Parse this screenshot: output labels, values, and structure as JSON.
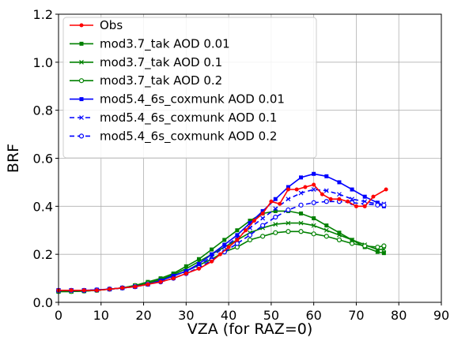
{
  "chart_data": {
    "type": "line",
    "xlabel": "VZA (for RAZ=0)",
    "ylabel": "BRF",
    "xlim": [
      0,
      90
    ],
    "ylim": [
      0,
      1.2
    ],
    "xticks": [
      "0",
      "10",
      "20",
      "30",
      "40",
      "50",
      "60",
      "70",
      "80",
      "90"
    ],
    "yticks": [
      "0.0",
      "0.2",
      "0.4",
      "0.6",
      "0.8",
      "1.0",
      "1.2"
    ],
    "grid": true,
    "legend_position": "top-left",
    "series": [
      {
        "name": "Obs",
        "color": "#ff0000",
        "marker": "dot",
        "dash": "solid",
        "x": [
          0,
          3,
          6,
          9,
          12,
          15,
          18,
          21,
          24,
          27,
          30,
          33,
          36,
          38,
          40,
          42,
          44,
          46,
          48,
          50,
          52,
          54,
          56,
          58,
          60,
          62,
          64,
          66,
          68,
          70,
          72,
          74,
          77
        ],
        "y": [
          0.05,
          0.05,
          0.05,
          0.05,
          0.055,
          0.06,
          0.065,
          0.075,
          0.085,
          0.1,
          0.12,
          0.14,
          0.17,
          0.2,
          0.23,
          0.26,
          0.3,
          0.34,
          0.37,
          0.42,
          0.41,
          0.47,
          0.47,
          0.48,
          0.49,
          0.45,
          0.43,
          0.43,
          0.42,
          0.4,
          0.4,
          0.44,
          0.47
        ]
      },
      {
        "name": "mod3.7_tak AOD 0.01",
        "color": "#008000",
        "marker": "square",
        "dash": "solid",
        "x": [
          0,
          3,
          6,
          9,
          12,
          15,
          18,
          21,
          24,
          27,
          30,
          33,
          36,
          39,
          42,
          45,
          48,
          51,
          54,
          57,
          60,
          63,
          66,
          69,
          72,
          75,
          76.5
        ],
        "y": [
          0.045,
          0.045,
          0.047,
          0.05,
          0.055,
          0.06,
          0.07,
          0.085,
          0.1,
          0.12,
          0.15,
          0.18,
          0.22,
          0.26,
          0.3,
          0.34,
          0.37,
          0.38,
          0.38,
          0.37,
          0.35,
          0.32,
          0.29,
          0.26,
          0.23,
          0.21,
          0.205
        ]
      },
      {
        "name": "mod3.7_tak AOD 0.1",
        "color": "#008000",
        "marker": "x",
        "dash": "solid",
        "x": [
          0,
          3,
          6,
          9,
          12,
          15,
          18,
          21,
          24,
          27,
          30,
          33,
          36,
          39,
          42,
          45,
          48,
          51,
          54,
          57,
          60,
          63,
          66,
          69,
          72,
          75,
          76.5
        ],
        "y": [
          0.045,
          0.045,
          0.047,
          0.05,
          0.055,
          0.06,
          0.07,
          0.08,
          0.095,
          0.115,
          0.14,
          0.17,
          0.2,
          0.23,
          0.26,
          0.29,
          0.31,
          0.325,
          0.33,
          0.33,
          0.32,
          0.3,
          0.28,
          0.26,
          0.24,
          0.22,
          0.22
        ]
      },
      {
        "name": "mod3.7_tak AOD 0.2",
        "color": "#008000",
        "marker": "circle",
        "dash": "solid",
        "x": [
          0,
          3,
          6,
          9,
          12,
          15,
          18,
          21,
          24,
          27,
          30,
          33,
          36,
          39,
          42,
          45,
          48,
          51,
          54,
          57,
          60,
          63,
          66,
          69,
          72,
          75,
          76.5
        ],
        "y": [
          0.045,
          0.045,
          0.047,
          0.05,
          0.055,
          0.06,
          0.07,
          0.08,
          0.09,
          0.11,
          0.13,
          0.155,
          0.18,
          0.21,
          0.23,
          0.26,
          0.275,
          0.29,
          0.295,
          0.295,
          0.285,
          0.275,
          0.26,
          0.245,
          0.235,
          0.23,
          0.235
        ]
      },
      {
        "name": "mod5.4_6s_coxmunk AOD 0.01",
        "color": "#0000ff",
        "marker": "square",
        "dash": "solid",
        "x": [
          0,
          3,
          6,
          9,
          12,
          15,
          18,
          21,
          24,
          27,
          30,
          33,
          36,
          39,
          42,
          45,
          48,
          51,
          54,
          57,
          60,
          63,
          66,
          69,
          72,
          75,
          76.5
        ],
        "y": [
          0.05,
          0.05,
          0.05,
          0.052,
          0.055,
          0.06,
          0.065,
          0.075,
          0.09,
          0.11,
          0.13,
          0.16,
          0.2,
          0.24,
          0.28,
          0.33,
          0.38,
          0.43,
          0.48,
          0.52,
          0.535,
          0.525,
          0.5,
          0.47,
          0.44,
          0.415,
          0.4
        ]
      },
      {
        "name": "mod5.4_6s_coxmunk AOD 0.1",
        "color": "#0000ff",
        "marker": "x",
        "dash": "dashed",
        "x": [
          0,
          3,
          6,
          9,
          12,
          15,
          18,
          21,
          24,
          27,
          30,
          33,
          36,
          39,
          42,
          45,
          48,
          51,
          54,
          57,
          60,
          63,
          66,
          69,
          72,
          75,
          76.5
        ],
        "y": [
          0.05,
          0.05,
          0.05,
          0.052,
          0.055,
          0.06,
          0.065,
          0.075,
          0.09,
          0.11,
          0.13,
          0.155,
          0.19,
          0.23,
          0.27,
          0.31,
          0.35,
          0.39,
          0.43,
          0.455,
          0.47,
          0.465,
          0.45,
          0.43,
          0.42,
          0.41,
          0.41
        ]
      },
      {
        "name": "mod5.4_6s_coxmunk AOD 0.2",
        "color": "#0000ff",
        "marker": "circle",
        "dash": "dashed",
        "x": [
          0,
          3,
          6,
          9,
          12,
          15,
          18,
          21,
          24,
          27,
          30,
          33,
          36,
          39,
          42,
          45,
          48,
          51,
          54,
          57,
          60,
          63,
          66,
          69,
          72,
          75,
          76.5
        ],
        "y": [
          0.05,
          0.05,
          0.05,
          0.052,
          0.055,
          0.06,
          0.065,
          0.075,
          0.085,
          0.1,
          0.12,
          0.145,
          0.175,
          0.21,
          0.245,
          0.28,
          0.32,
          0.355,
          0.385,
          0.405,
          0.415,
          0.42,
          0.42,
          0.415,
          0.41,
          0.405,
          0.405
        ]
      }
    ]
  }
}
